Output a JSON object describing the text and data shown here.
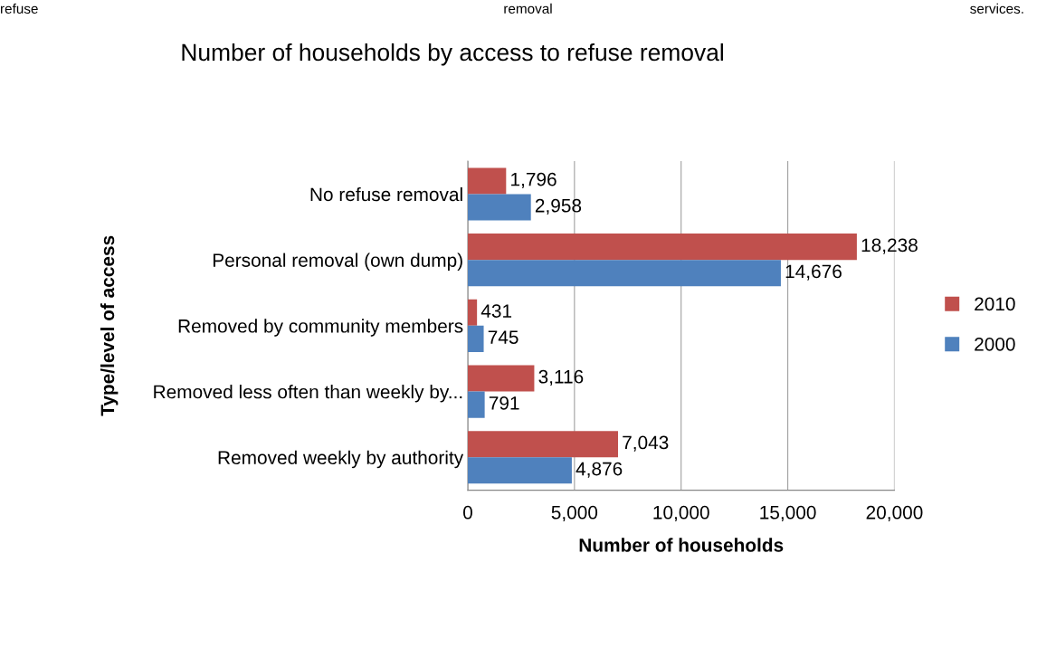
{
  "chart_data": {
    "type": "bar",
    "orientation": "horizontal",
    "title": "Number of households by access to refuse removal",
    "xlabel": "Number of households",
    "ylabel": "Type/level of access",
    "categories": [
      "No refuse removal",
      "Personal removal (own dump)",
      "Removed by community members",
      "Removed less often than weekly by...",
      "Removed weekly by authority"
    ],
    "series": [
      {
        "name": "2010",
        "color": "#c0504d",
        "values": [
          1796,
          18238,
          431,
          3116,
          7043
        ],
        "value_labels": [
          "1,796",
          "18,238",
          "431",
          "3,116",
          "7,043"
        ]
      },
      {
        "name": "2000",
        "color": "#4f81bd",
        "values": [
          2958,
          14676,
          745,
          791,
          4876
        ],
        "value_labels": [
          "2,958",
          "14,676",
          "745",
          "791",
          "4,876"
        ]
      }
    ],
    "xlim": [
      0,
      20000
    ],
    "xticks": [
      {
        "value": 0,
        "label": "0"
      },
      {
        "value": 5000,
        "label": "5,000"
      },
      {
        "value": 10000,
        "label": "10,000"
      },
      {
        "value": 15000,
        "label": "15,000"
      },
      {
        "value": 20000,
        "label": "20,000"
      }
    ],
    "grid": "x",
    "legend": "right",
    "annotations": [
      "refuse",
      "removal",
      "services."
    ]
  }
}
